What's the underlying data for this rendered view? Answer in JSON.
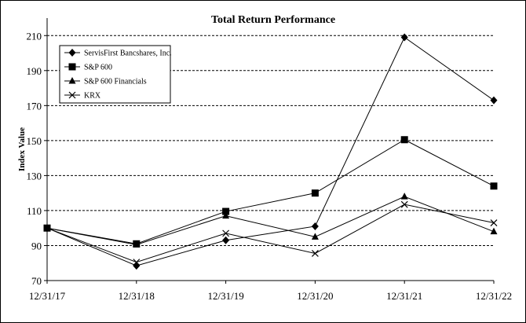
{
  "chart_data": {
    "type": "line",
    "title": "Total Return Performance",
    "xlabel": "",
    "ylabel": "Index Value",
    "categories": [
      "12/31/17",
      "12/31/18",
      "12/31/19",
      "12/31/20",
      "12/31/21",
      "12/31/22"
    ],
    "ylim": [
      70,
      220
    ],
    "yticks": [
      70,
      90,
      110,
      130,
      150,
      170,
      190,
      210
    ],
    "grid": true,
    "legend": "top-left",
    "series": [
      {
        "name": "ServisFirst Bancshares, Inc.",
        "marker": "diamond",
        "values": [
          100,
          78.5,
          93,
          101,
          209,
          173
        ]
      },
      {
        "name": "S&P 600",
        "marker": "square",
        "values": [
          100,
          91,
          109.5,
          120,
          150.5,
          124
        ]
      },
      {
        "name": "S&P 600 Financials",
        "marker": "triangle",
        "values": [
          100,
          90.5,
          107,
          95,
          118,
          98
        ]
      },
      {
        "name": "KRX",
        "marker": "x",
        "values": [
          100,
          80.5,
          97,
          85.5,
          113.5,
          103
        ]
      }
    ]
  }
}
